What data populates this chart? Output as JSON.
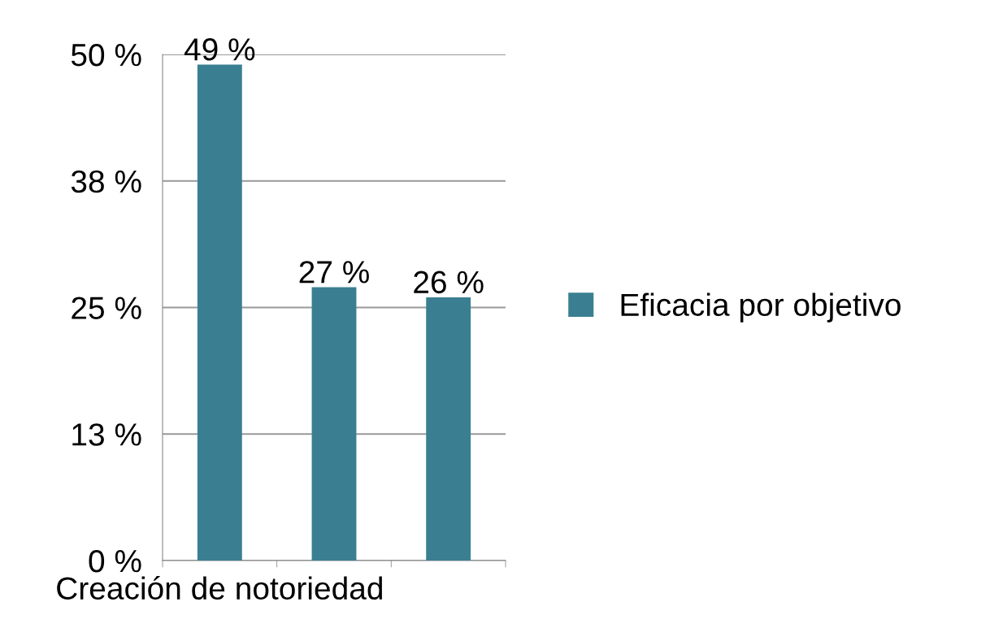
{
  "chart_data": {
    "type": "bar",
    "categories": [
      "Creación de notoriedad",
      null,
      null
    ],
    "series": [
      {
        "name": "Eficacia por objetivo",
        "color": "#3a7f91",
        "values": [
          49,
          27,
          26
        ],
        "value_labels": [
          "49 %",
          "27 %",
          "26 %"
        ]
      }
    ],
    "ylim": [
      0,
      50
    ],
    "yticks": [
      {
        "value": 0,
        "label": "0 %"
      },
      {
        "value": 12.5,
        "label": "13 %"
      },
      {
        "value": 25,
        "label": "25 %"
      },
      {
        "value": 37.5,
        "label": "38 %"
      },
      {
        "value": 50,
        "label": "50 %"
      }
    ],
    "grid": "y",
    "legend": "right"
  }
}
